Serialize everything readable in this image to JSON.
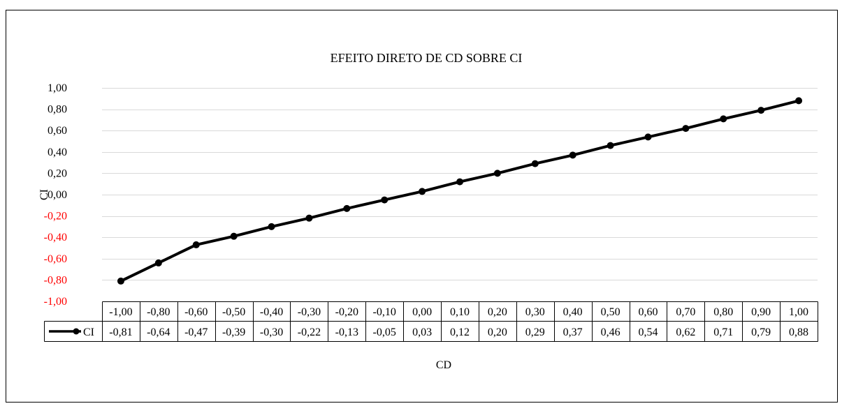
{
  "chart_data": {
    "type": "line",
    "title": "EFEITO DIRETO DE CD SOBRE CI",
    "xlabel": "CD",
    "ylabel": "CI",
    "categories": [
      "-1,00",
      "-0,80",
      "-0,60",
      "-0,50",
      "-0,40",
      "-0,30",
      "-0,20",
      "-0,10",
      "0,00",
      "0,10",
      "0,20",
      "0,30",
      "0,40",
      "0,50",
      "0,60",
      "0,70",
      "0,80",
      "0,90",
      "1,00"
    ],
    "series": [
      {
        "name": "CI",
        "values": [
          -0.81,
          -0.64,
          -0.47,
          -0.39,
          -0.3,
          -0.22,
          -0.13,
          -0.05,
          0.03,
          0.12,
          0.2,
          0.29,
          0.37,
          0.46,
          0.54,
          0.62,
          0.71,
          0.79,
          0.88
        ],
        "labels": [
          "-0,81",
          "-0,64",
          "-0,47",
          "-0,39",
          "-0,30",
          "-0,22",
          "-0,13",
          "-0,05",
          "0,03",
          "0,12",
          "0,20",
          "0,29",
          "0,37",
          "0,46",
          "0,54",
          "0,62",
          "0,71",
          "0,79",
          "0,88"
        ],
        "color": "#000000"
      }
    ],
    "ylim": [
      -1.0,
      1.0
    ],
    "yticks": [
      -1.0,
      -0.8,
      -0.6,
      -0.4,
      -0.2,
      0.0,
      0.2,
      0.4,
      0.6,
      0.8,
      1.0
    ],
    "ytick_labels": [
      "-1,00",
      "-0,80",
      "-0,60",
      "-0,40",
      "-0,20",
      "0,00",
      "0,20",
      "0,40",
      "0,60",
      "0,80",
      "1,00"
    ],
    "negative_tick_color": "#ff0000",
    "grid": true,
    "data_table": true,
    "legend": "data-table"
  }
}
